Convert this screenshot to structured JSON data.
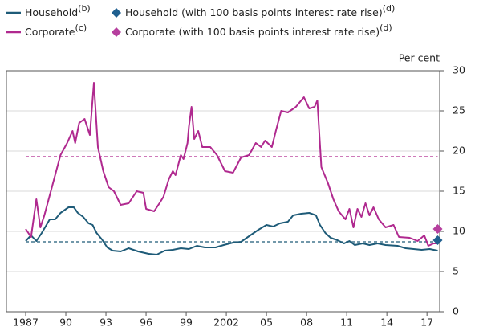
{
  "chart_data": {
    "type": "line",
    "y_label": "Per cent",
    "xlim": [
      1985.56,
      2017.95
    ],
    "ylim": [
      0,
      30
    ],
    "yticks": [
      0,
      5,
      10,
      15,
      20,
      25,
      30
    ],
    "xticks": [
      1987,
      {
        "value": 1990,
        "label": "90"
      },
      {
        "value": 1993,
        "label": "93"
      },
      {
        "value": 1996,
        "label": "96"
      },
      {
        "value": 1999,
        "label": "99"
      },
      2002,
      {
        "value": 2005,
        "label": "05"
      },
      {
        "value": 2008,
        "label": "08"
      },
      {
        "value": 2011,
        "label": "11"
      },
      {
        "value": 2014,
        "label": "14"
      },
      {
        "value": 2017,
        "label": "17"
      }
    ],
    "grid": true,
    "series": [
      {
        "name": "Household",
        "note": "(b)",
        "kind": "line",
        "color": "#1e5b78",
        "x": [
          1987.0,
          1987.4,
          1987.8,
          1988.2,
          1988.8,
          1989.2,
          1989.6,
          1990.2,
          1990.6,
          1990.9,
          1991.3,
          1991.7,
          1992.0,
          1992.3,
          1992.7,
          1993.1,
          1993.5,
          1994.1,
          1994.7,
          1995.4,
          1996.2,
          1996.8,
          1997.4,
          1998.0,
          1998.6,
          1999.2,
          1999.8,
          2000.4,
          2001.2,
          2001.8,
          2002.5,
          2003.1,
          2003.7,
          2004.4,
          2005.0,
          2005.5,
          2006.0,
          2006.6,
          2007.0,
          2007.6,
          2008.2,
          2008.7,
          2009.0,
          2009.4,
          2009.8,
          2010.3,
          2010.8,
          2011.2,
          2011.6,
          2012.2,
          2012.7,
          2013.3,
          2013.9,
          2014.8,
          2015.4,
          2016.0,
          2016.6,
          2017.2,
          2017.8
        ],
        "values": [
          8.8,
          9.5,
          8.8,
          9.8,
          11.5,
          11.5,
          12.3,
          13,
          13,
          12.3,
          11.8,
          11,
          10.8,
          9.8,
          9,
          8,
          7.6,
          7.5,
          7.9,
          7.5,
          7.2,
          7.1,
          7.6,
          7.7,
          7.9,
          7.8,
          8.2,
          8.0,
          8.0,
          8.3,
          8.6,
          8.7,
          9.4,
          10.2,
          10.8,
          10.6,
          11,
          11.2,
          12,
          12.2,
          12.3,
          12.0,
          10.8,
          9.8,
          9.2,
          8.9,
          8.5,
          8.8,
          8.3,
          8.5,
          8.3,
          8.5,
          8.3,
          8.2,
          7.9,
          7.8,
          7.7,
          7.8,
          7.6
        ]
      },
      {
        "name": "Corporate",
        "note": "(c)",
        "kind": "line",
        "color": "#b0298f",
        "x": [
          1987.0,
          1987.4,
          1987.8,
          1988.1,
          1988.4,
          1988.8,
          1989.2,
          1989.6,
          1990.1,
          1990.5,
          1990.7,
          1991.0,
          1991.4,
          1991.8,
          1992.1,
          1992.4,
          1992.8,
          1993.2,
          1993.6,
          1994.1,
          1994.7,
          1995.3,
          1995.8,
          1996.0,
          1996.6,
          1997.0,
          1997.3,
          1997.7,
          1998.0,
          1998.2,
          1998.6,
          1998.8,
          1999.1,
          1999.2,
          1999.4,
          1999.6,
          1999.9,
          2000.2,
          2000.8,
          2001.3,
          2001.9,
          2002.5,
          2003.1,
          2003.7,
          2004.2,
          2004.6,
          2004.9,
          2005.4,
          2005.7,
          2006.1,
          2006.6,
          2007.2,
          2007.8,
          2008.2,
          2008.6,
          2008.8,
          2009.1,
          2009.6,
          2010.0,
          2010.4,
          2010.9,
          2011.2,
          2011.5,
          2011.8,
          2012.1,
          2012.4,
          2012.7,
          2013.0,
          2013.4,
          2013.9,
          2014.5,
          2014.9,
          2015.7,
          2016.3,
          2016.8,
          2017.1,
          2017.5,
          2017.8
        ],
        "values": [
          10.3,
          9.3,
          14,
          10.5,
          12,
          14.5,
          17,
          19.5,
          21,
          22.5,
          21,
          23.5,
          24,
          22,
          28.5,
          20.5,
          17.5,
          15.5,
          15,
          13.3,
          13.5,
          15,
          14.8,
          12.8,
          12.5,
          13.5,
          14.3,
          16.5,
          17.5,
          17,
          19.5,
          19,
          21,
          23,
          25.5,
          21.5,
          22.5,
          20.5,
          20.5,
          19.5,
          17.5,
          17.3,
          19.2,
          19.5,
          21,
          20.5,
          21.3,
          20.5,
          22.5,
          25,
          24.8,
          25.5,
          26.7,
          25.3,
          25.5,
          26.3,
          18,
          16,
          14,
          12.5,
          11.5,
          12.8,
          10.5,
          12.8,
          11.8,
          13.5,
          12,
          13,
          11.5,
          10.5,
          10.8,
          9.3,
          9.2,
          8.8,
          9.5,
          8.2,
          8.5,
          8.5
        ]
      },
      {
        "name": "Household (with 100 basis points interest rate rise)",
        "note": "(d)",
        "kind": "point",
        "color": "#1f5f8f",
        "x": [
          2017.8
        ],
        "values": [
          8.9
        ]
      },
      {
        "name": "Corporate (with 100 basis points interest rate rise)",
        "note": "(d)",
        "kind": "point",
        "color": "#b63f9e",
        "x": [
          2017.8
        ],
        "values": [
          10.3
        ]
      }
    ],
    "reference_lines": [
      {
        "color": "#b0298f",
        "value": 19.3
      },
      {
        "color": "#1e5b78",
        "value": 8.7
      }
    ]
  }
}
